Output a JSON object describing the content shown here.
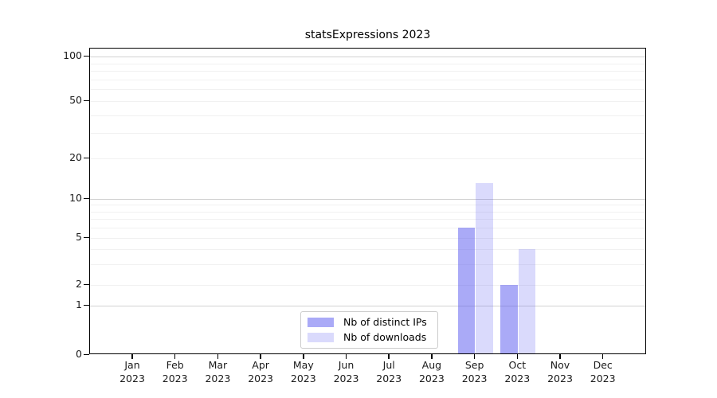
{
  "chart_data": {
    "type": "bar",
    "title": "statsExpressions 2023",
    "categories": [
      "Jan 2023",
      "Feb 2023",
      "Mar 2023",
      "Apr 2023",
      "May 2023",
      "Jun 2023",
      "Jul 2023",
      "Aug 2023",
      "Sep 2023",
      "Oct 2023",
      "Nov 2023",
      "Dec 2023"
    ],
    "series": [
      {
        "name": "Nb of distinct IPs",
        "color": "rgba(85,85,240,0.5)",
        "values": [
          0,
          0,
          0,
          0,
          0,
          0,
          0,
          0,
          6,
          2,
          0,
          0
        ]
      },
      {
        "name": "Nb of downloads",
        "color": "rgba(85,85,240,0.22)",
        "values": [
          0,
          0,
          0,
          0,
          0,
          0,
          0,
          0,
          13,
          4,
          0,
          0
        ]
      }
    ],
    "xlabel": "",
    "ylabel": "",
    "yscale": "symlog",
    "yticks": [
      0,
      1,
      2,
      5,
      10,
      20,
      50,
      100
    ],
    "minor_yticks": [
      3,
      4,
      6,
      7,
      8,
      9,
      30,
      40,
      60,
      70,
      80,
      90
    ],
    "major_grid_values": [
      1,
      10,
      100
    ],
    "ylim": [
      0,
      110
    ],
    "grid": true,
    "legend_position": "lower center",
    "colors": {
      "major_grid": "#d2d2d2",
      "minor_grid": "#f1f1f1",
      "axis": "#000000",
      "text": "#1a1a1a"
    }
  }
}
